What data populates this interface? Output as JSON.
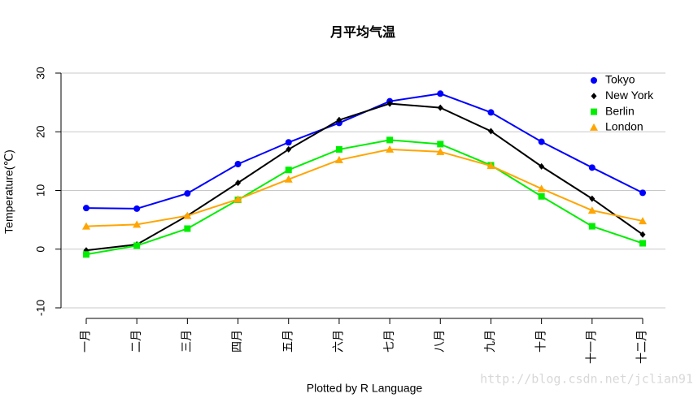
{
  "chart_data": {
    "type": "line",
    "title": "月平均气温",
    "x_label": "Plotted by R Language",
    "y_label": "Temperature(℃)",
    "categories": [
      "一月",
      "二月",
      "三月",
      "四月",
      "五月",
      "六月",
      "七月",
      "八月",
      "九月",
      "十月",
      "十一月",
      "十二月"
    ],
    "series": [
      {
        "name": "Tokyo",
        "color": "#0000ff",
        "marker": "circle",
        "values": [
          7.0,
          6.9,
          9.5,
          14.5,
          18.2,
          21.5,
          25.2,
          26.5,
          23.3,
          18.3,
          13.9,
          9.6
        ]
      },
      {
        "name": "New York",
        "color": "#000000",
        "marker": "diamond",
        "values": [
          -0.2,
          0.8,
          5.7,
          11.3,
          17.0,
          22.0,
          24.8,
          24.1,
          20.1,
          14.1,
          8.6,
          2.5
        ]
      },
      {
        "name": "Berlin",
        "color": "#00ee00",
        "marker": "square",
        "values": [
          -0.9,
          0.6,
          3.5,
          8.4,
          13.5,
          17.0,
          18.6,
          17.9,
          14.3,
          9.0,
          3.9,
          1.0
        ]
      },
      {
        "name": "London",
        "color": "#ffa500",
        "marker": "triangle",
        "values": [
          3.9,
          4.2,
          5.7,
          8.5,
          11.9,
          15.2,
          17.0,
          16.6,
          14.2,
          10.3,
          6.6,
          4.8
        ]
      }
    ],
    "ylim": [
      -10,
      30
    ],
    "yticks": [
      -10,
      0,
      10,
      20,
      30
    ],
    "grid": true,
    "legend": "topright"
  },
  "watermark": "http://blog.csdn.net/jclian91"
}
